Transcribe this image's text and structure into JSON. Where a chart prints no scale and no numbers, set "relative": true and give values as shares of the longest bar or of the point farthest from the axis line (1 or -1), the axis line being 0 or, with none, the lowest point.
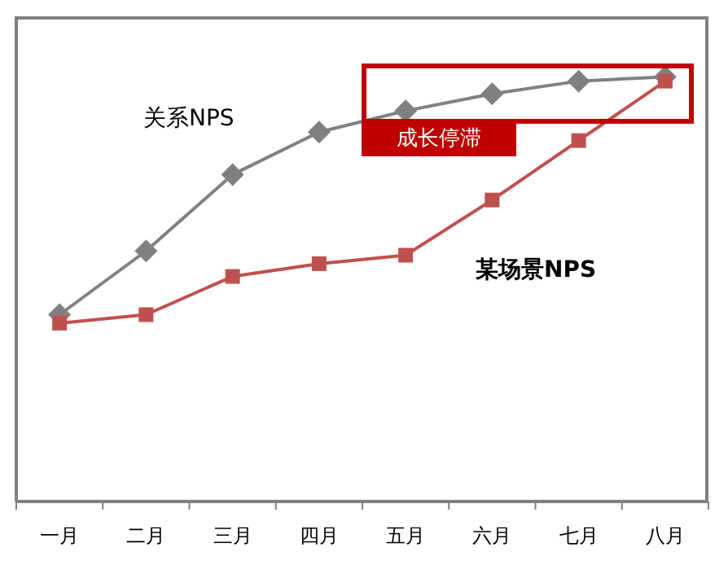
{
  "chart_data": {
    "type": "line",
    "relative": true,
    "categories": [
      "一月",
      "二月",
      "三月",
      "四月",
      "五月",
      "六月",
      "七月",
      "八月"
    ],
    "series": [
      {
        "name": "关系NPS",
        "color": "#808080",
        "marker": "diamond",
        "values": [
          0.44,
          0.59,
          0.77,
          0.87,
          0.92,
          0.96,
          0.99,
          1
        ]
      },
      {
        "name": "某场景NPS",
        "color": "#c0504d",
        "marker": "square",
        "values": [
          0.42,
          0.44,
          0.53,
          0.56,
          0.58,
          0.71,
          0.85,
          0.99
        ]
      }
    ],
    "annotations": [
      "成长停滞"
    ],
    "grid": false,
    "legend": false
  }
}
